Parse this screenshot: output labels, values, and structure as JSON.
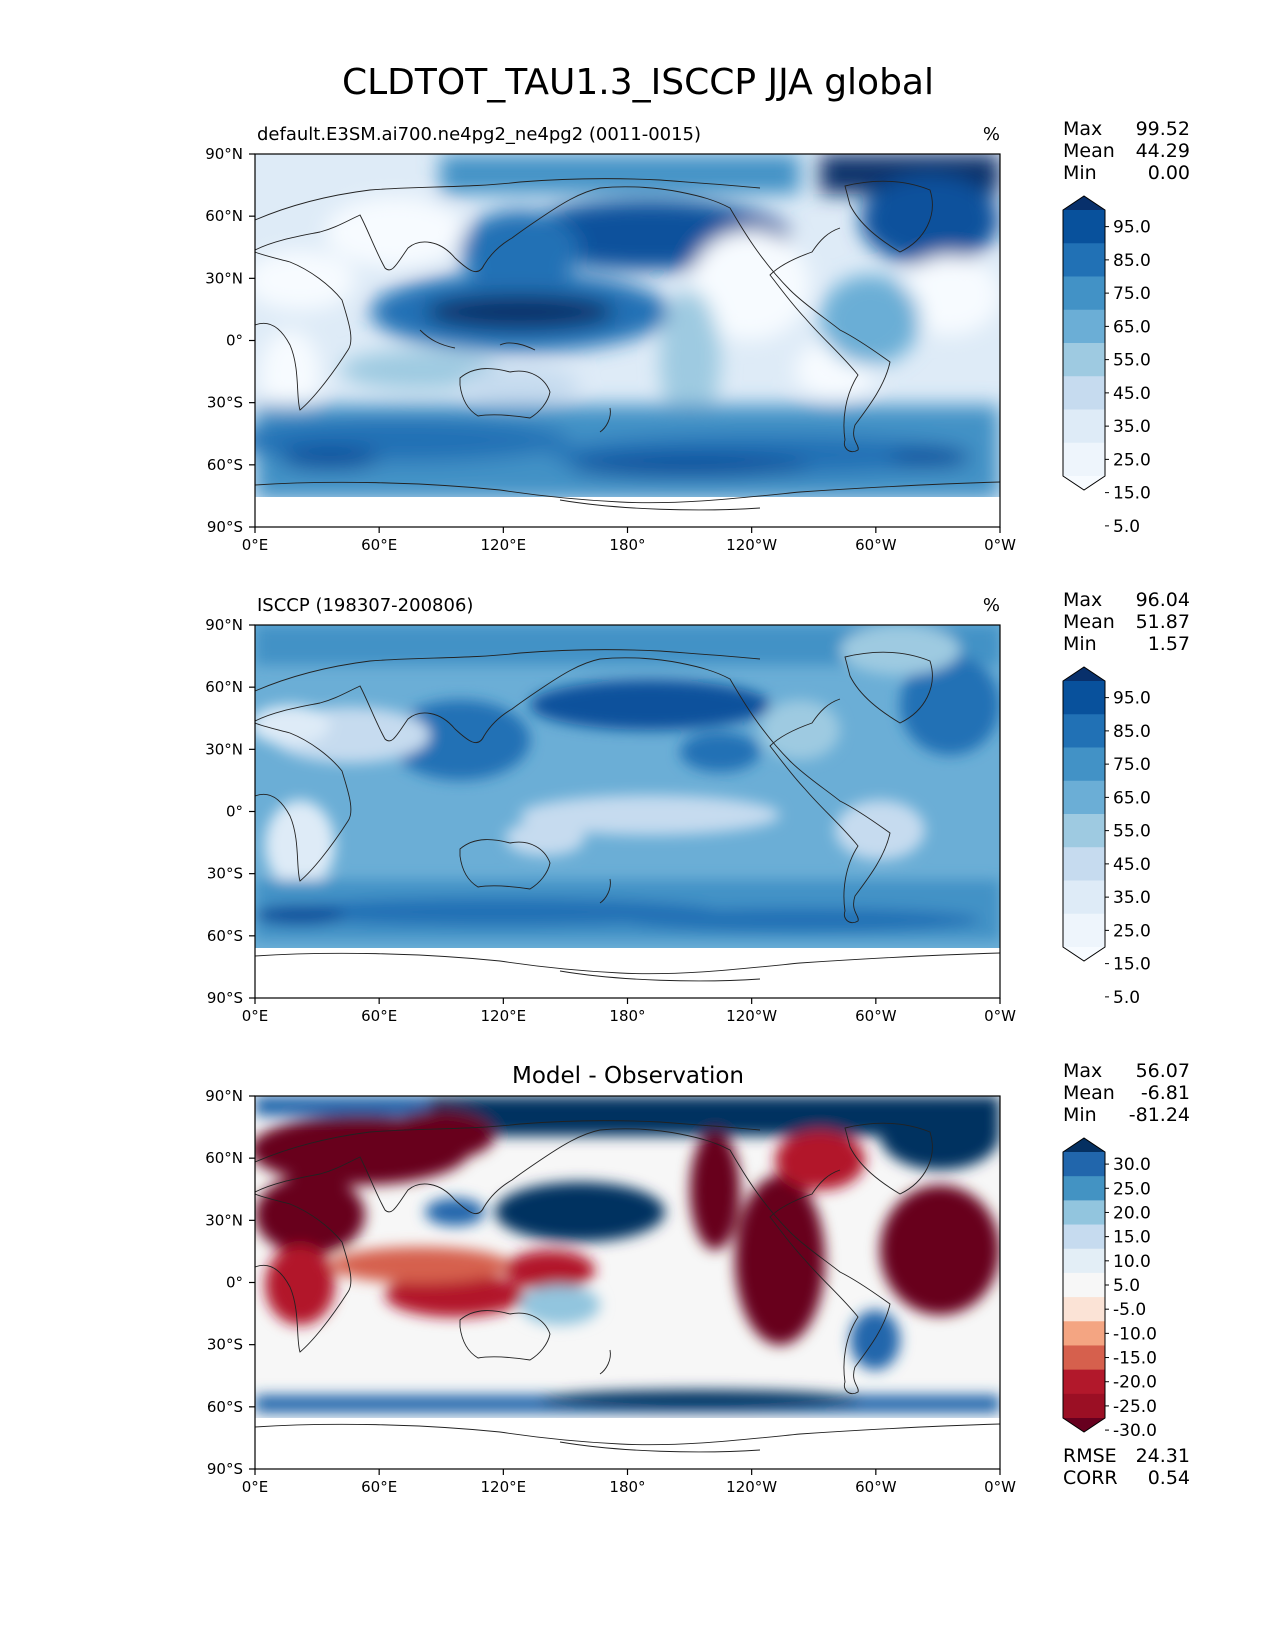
{
  "title": "CLDTOT_TAU1.3_ISCCP JJA global",
  "axes": {
    "x_ticks": [
      "0°E",
      "60°E",
      "120°E",
      "180°",
      "120°W",
      "60°W",
      "0°W"
    ],
    "y_ticks": [
      "90°N",
      "60°N",
      "30°N",
      "0°",
      "30°S",
      "60°S",
      "90°S"
    ]
  },
  "panels": [
    {
      "id": "model",
      "left_title": "default.E3SM.ai700.ne4pg2_ne4pg2 (0011-0015)",
      "center_title": "",
      "unit": "%",
      "stats": [
        {
          "label": "Max",
          "value": "99.52"
        },
        {
          "label": "Mean",
          "value": "44.29"
        },
        {
          "label": "Min",
          "value": "0.00"
        }
      ],
      "colorbar": {
        "labels": [
          "95.0",
          "85.0",
          "75.0",
          "65.0",
          "55.0",
          "45.0",
          "35.0",
          "25.0",
          "15.0",
          "5.0"
        ],
        "colors": [
          "#08306b",
          "#08519c",
          "#2171b5",
          "#4292c6",
          "#6baed6",
          "#9ecae1",
          "#c6dbef",
          "#deebf7",
          "#eef5fc",
          "#f7fbff"
        ]
      },
      "footer": []
    },
    {
      "id": "obs",
      "left_title": "ISCCP (198307-200806)",
      "center_title": "",
      "unit": "%",
      "stats": [
        {
          "label": "Max",
          "value": "96.04"
        },
        {
          "label": "Mean",
          "value": "51.87"
        },
        {
          "label": "Min",
          "value": "1.57"
        }
      ],
      "colorbar": {
        "labels": [
          "95.0",
          "85.0",
          "75.0",
          "65.0",
          "55.0",
          "45.0",
          "35.0",
          "25.0",
          "15.0",
          "5.0"
        ],
        "colors": [
          "#08306b",
          "#08519c",
          "#2171b5",
          "#4292c6",
          "#6baed6",
          "#9ecae1",
          "#c6dbef",
          "#deebf7",
          "#eef5fc",
          "#f7fbff"
        ]
      },
      "footer": []
    },
    {
      "id": "diff",
      "left_title": "",
      "center_title": "Model - Observation",
      "unit": "",
      "stats": [
        {
          "label": "Max",
          "value": "56.07"
        },
        {
          "label": "Mean",
          "value": "-6.81"
        },
        {
          "label": "Min",
          "value": "-81.24"
        }
      ],
      "colorbar": {
        "labels": [
          "30.0",
          "25.0",
          "20.0",
          "15.0",
          "10.0",
          "5.0",
          "-5.0",
          "-10.0",
          "-15.0",
          "-20.0",
          "-25.0",
          "-30.0"
        ],
        "colors": [
          "#053061",
          "#2166ac",
          "#4393c3",
          "#92c5de",
          "#c6dbef",
          "#e3eef6",
          "#f7f7f7",
          "#fbe3d6",
          "#f4a582",
          "#d6604d",
          "#b2182b",
          "#9b0f24",
          "#67001f"
        ]
      },
      "footer": [
        {
          "label": "RMSE",
          "value": "24.31"
        },
        {
          "label": "CORR",
          "value": "0.54"
        }
      ]
    }
  ]
}
